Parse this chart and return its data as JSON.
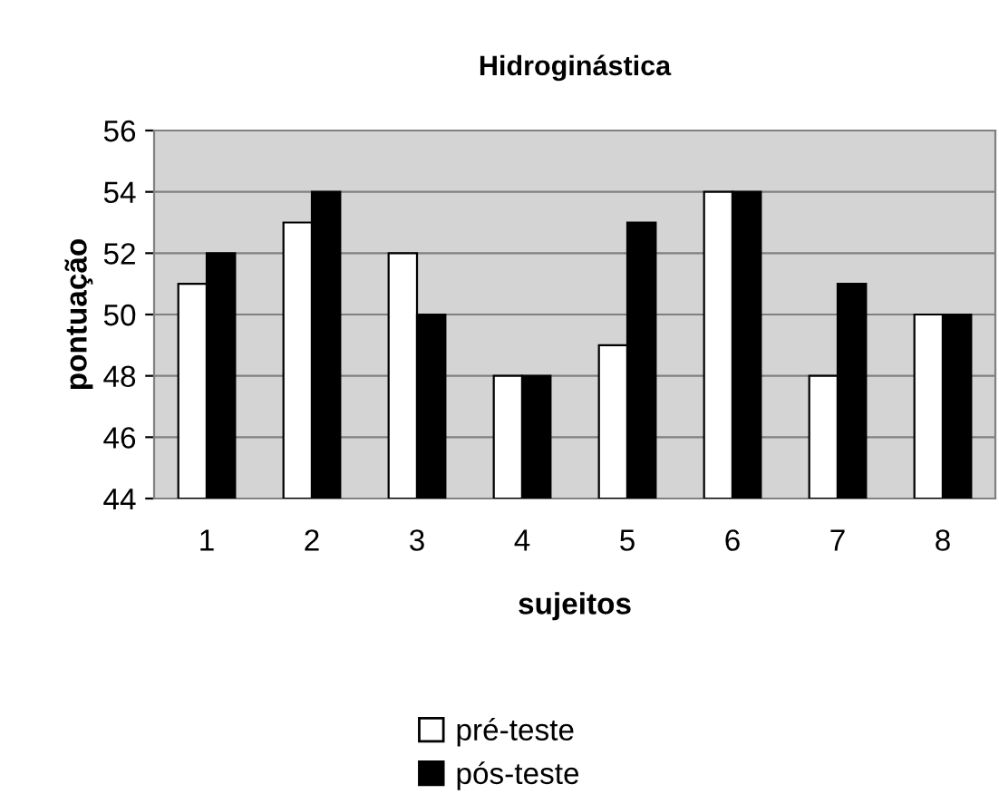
{
  "chart_data": {
    "type": "bar",
    "title": "Hidroginástica",
    "xlabel": "sujeitos",
    "ylabel": "pontuação",
    "categories": [
      "1",
      "2",
      "3",
      "4",
      "5",
      "6",
      "7",
      "8"
    ],
    "series": [
      {
        "name": "pré-teste",
        "color": "#ffffff",
        "values": [
          51,
          53,
          52,
          48,
          49,
          54,
          48,
          50
        ]
      },
      {
        "name": "pós-teste",
        "color": "#000000",
        "values": [
          52,
          54,
          50,
          48,
          53,
          54,
          51,
          50
        ]
      }
    ],
    "ylim": [
      44,
      56
    ],
    "yticks": [
      44,
      46,
      48,
      50,
      52,
      54,
      56
    ],
    "grid": "y",
    "legend": "bottom"
  }
}
